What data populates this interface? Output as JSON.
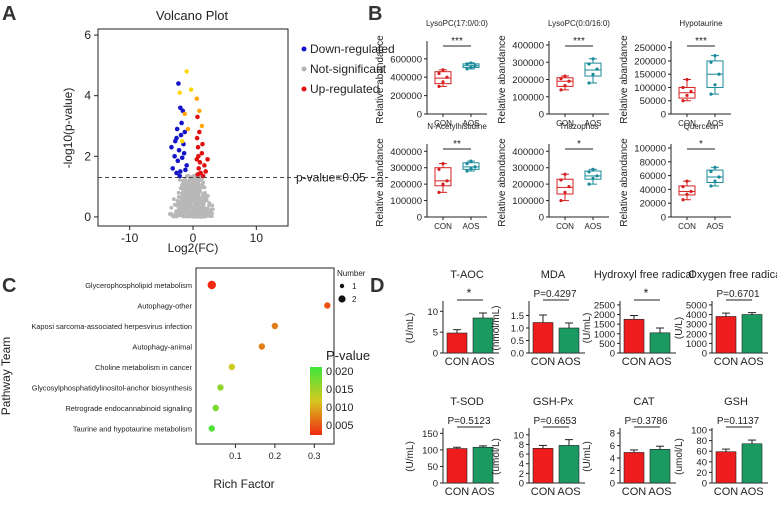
{
  "panels": {
    "A": "A",
    "B": "B",
    "C": "C",
    "D": "D"
  },
  "chart_data": [
    {
      "id": "A",
      "type": "scatter",
      "title": "Volcano Plot",
      "xlabel": "Log2(FC)",
      "ylabel": "-log10(p-value)",
      "xlim": [
        -15,
        15
      ],
      "ylim": [
        -0.3,
        6.2
      ],
      "xticks": [
        "-10",
        "0",
        "10"
      ],
      "yticks": [
        "0",
        "2",
        "4",
        "6"
      ],
      "legend": [
        {
          "label": "Down-regulated",
          "color": "#1414c8"
        },
        {
          "label": "Not-significant",
          "color": "#b4b4b4"
        },
        {
          "label": "Up-regulated",
          "color": "#e01010"
        }
      ],
      "threshold": {
        "value": 1.3,
        "label": "p-value=0.05"
      },
      "down_points": [
        [
          -2.3,
          4.4
        ],
        [
          -2.0,
          3.6
        ],
        [
          -1.6,
          3.5
        ],
        [
          -2.5,
          2.9
        ],
        [
          -1.9,
          2.7
        ],
        [
          -2.8,
          2.5
        ],
        [
          -1.5,
          2.4
        ],
        [
          -2.2,
          2.2
        ],
        [
          -2.9,
          2.0
        ],
        [
          -2.4,
          1.85
        ],
        [
          -1.7,
          1.95
        ],
        [
          -3.2,
          1.6
        ],
        [
          -2.0,
          1.5
        ],
        [
          -1.2,
          1.55
        ],
        [
          -2.6,
          1.45
        ],
        [
          -1.4,
          2.1
        ],
        [
          -3.4,
          2.3
        ],
        [
          -1.0,
          1.7
        ],
        [
          -2.1,
          1.35
        ],
        [
          -1.8,
          3.1
        ],
        [
          -2.6,
          2.6
        ],
        [
          -1.3,
          2.8
        ]
      ],
      "up_points": [
        [
          0.7,
          3.3
        ],
        [
          1.0,
          2.8
        ],
        [
          0.8,
          2.3
        ],
        [
          1.4,
          2.1
        ],
        [
          0.6,
          1.9
        ],
        [
          1.8,
          1.7
        ],
        [
          0.9,
          1.6
        ],
        [
          1.2,
          1.45
        ],
        [
          0.75,
          1.4
        ],
        [
          2.0,
          1.5
        ],
        [
          1.5,
          2.4
        ],
        [
          0.65,
          2.6
        ],
        [
          1.1,
          1.8
        ],
        [
          1.6,
          1.35
        ],
        [
          2.3,
          1.9
        ],
        [
          0.85,
          2.0
        ]
      ],
      "highlight_points": [
        [
          -2.1,
          4.1,
          "#ffd700"
        ],
        [
          -1.0,
          4.8,
          "#ffd700"
        ],
        [
          -0.3,
          4.2,
          "#ffd700"
        ],
        [
          -1.3,
          3.4,
          "#ffa500"
        ],
        [
          0.6,
          3.9,
          "#ffa500"
        ],
        [
          1.0,
          3.5,
          "#ffa500"
        ],
        [
          -0.8,
          2.9,
          "#ffa500"
        ],
        [
          1.4,
          3.0,
          "#ffa500"
        ],
        [
          -1.7,
          2.5,
          "#ffd700"
        ]
      ]
    },
    {
      "id": "B",
      "type": "box",
      "xlabel": "",
      "ylabel": "Relative abandance",
      "categories": [
        "CON",
        "AOS"
      ],
      "group_colors": [
        "#d62020",
        "#1a8a9a"
      ],
      "plots": [
        {
          "title": "LysoPC(17:0/0:0)",
          "sig": "***",
          "ylim": [
            0,
            750000
          ],
          "yticks": [
            "0",
            "200000",
            "400000",
            "600000"
          ],
          "tick_values": [
            0,
            200000,
            400000,
            600000
          ],
          "groups": [
            {
              "min": 300000,
              "q1": 330000,
              "median": 390000,
              "q3": 460000,
              "max": 480000,
              "points": [
                300000,
                350000,
                400000,
                440000,
                480000
              ]
            },
            {
              "min": 490000,
              "q1": 505000,
              "median": 525000,
              "q3": 545000,
              "max": 555000,
              "points": [
                490000,
                510000,
                525000,
                545000,
                555000
              ]
            }
          ]
        },
        {
          "title": "LysoPC(0:0/16:0)",
          "sig": "***",
          "ylim": [
            0,
            400000
          ],
          "yticks": [
            "0",
            "100000",
            "200000",
            "300000",
            "400000"
          ],
          "tick_values": [
            0,
            100000,
            200000,
            300000,
            400000
          ],
          "groups": [
            {
              "min": 140000,
              "q1": 160000,
              "median": 190000,
              "q3": 210000,
              "max": 220000,
              "points": [
                140000,
                165000,
                190000,
                205000,
                220000
              ]
            },
            {
              "min": 180000,
              "q1": 220000,
              "median": 255000,
              "q3": 295000,
              "max": 320000,
              "points": [
                180000,
                230000,
                260000,
                290000,
                320000
              ]
            }
          ]
        },
        {
          "title": "Hypotaurine",
          "sig": "***",
          "ylim": [
            0,
            260000
          ],
          "yticks": [
            "0",
            "50000",
            "100000",
            "150000",
            "200000",
            "250000"
          ],
          "tick_values": [
            0,
            50000,
            100000,
            150000,
            200000,
            250000
          ],
          "groups": [
            {
              "min": 50000,
              "q1": 60000,
              "median": 80000,
              "q3": 100000,
              "max": 130000,
              "points": [
                50000,
                70000,
                85000,
                100000,
                130000
              ]
            },
            {
              "min": 75000,
              "q1": 100000,
              "median": 150000,
              "q3": 200000,
              "max": 220000,
              "points": [
                75000,
                110000,
                150000,
                195000,
                220000
              ]
            }
          ]
        },
        {
          "title": "N-Acetylhistidine",
          "sig": "**",
          "ylim": [
            0,
            420000
          ],
          "yticks": [
            "0",
            "100000",
            "200000",
            "300000",
            "400000"
          ],
          "tick_values": [
            0,
            100000,
            200000,
            300000,
            400000
          ],
          "groups": [
            {
              "min": 150000,
              "q1": 190000,
              "median": 220000,
              "q3": 300000,
              "max": 325000,
              "points": [
                150000,
                200000,
                220000,
                290000,
                325000
              ]
            },
            {
              "min": 280000,
              "q1": 290000,
              "median": 305000,
              "q3": 330000,
              "max": 340000,
              "points": [
                280000,
                295000,
                305000,
                325000,
                340000
              ]
            }
          ]
        },
        {
          "title": "Triazophos",
          "sig": "*",
          "ylim": [
            0,
            420000
          ],
          "yticks": [
            "0",
            "100000",
            "200000",
            "300000",
            "400000"
          ],
          "tick_values": [
            0,
            100000,
            200000,
            300000,
            400000
          ],
          "groups": [
            {
              "min": 100000,
              "q1": 140000,
              "median": 180000,
              "q3": 230000,
              "max": 260000,
              "points": [
                100000,
                150000,
                185000,
                225000,
                260000
              ]
            },
            {
              "min": 200000,
              "q1": 230000,
              "median": 250000,
              "q3": 280000,
              "max": 290000,
              "points": [
                200000,
                235000,
                250000,
                275000,
                290000
              ]
            }
          ]
        },
        {
          "title": "Quercetin",
          "sig": "*",
          "ylim": [
            0,
            100000
          ],
          "yticks": [
            "0",
            "20000",
            "40000",
            "60000",
            "80000",
            "100000"
          ],
          "tick_values": [
            0,
            20000,
            40000,
            60000,
            80000,
            100000
          ],
          "groups": [
            {
              "min": 25000,
              "q1": 32000,
              "median": 37000,
              "q3": 45000,
              "max": 52000,
              "points": [
                25000,
                33000,
                37000,
                44000,
                52000
              ]
            },
            {
              "min": 45000,
              "q1": 50000,
              "median": 58000,
              "q3": 68000,
              "max": 72000,
              "points": [
                45000,
                52000,
                58000,
                66000,
                72000
              ]
            }
          ]
        }
      ]
    },
    {
      "id": "C",
      "type": "scatter",
      "xlabel": "Rich Factor",
      "ylabel": "Pathway Team",
      "xlim": [
        0,
        0.35
      ],
      "xticks": [
        "0.1",
        "0.2",
        "0.3"
      ],
      "xtick_values": [
        0.1,
        0.2,
        0.3
      ],
      "size_legend": {
        "title": "Number",
        "labels": [
          "1",
          "2"
        ]
      },
      "color_legend": {
        "title": "P-value",
        "labels": [
          "0.020",
          "0.015",
          "0.010",
          "0.005"
        ],
        "values": [
          0.02,
          0.015,
          0.01,
          0.005
        ]
      },
      "pathways": [
        {
          "name": "Glycerophospholipid metabolism",
          "rich": 0.04,
          "number": 2,
          "p": 0.004
        },
        {
          "name": "Autophagy-other",
          "rich": 0.333,
          "number": 1,
          "p": 0.007
        },
        {
          "name": "Kaposi sarcoma-associated herpesvirus infection",
          "rich": 0.2,
          "number": 1,
          "p": 0.009
        },
        {
          "name": "Autophagy-animal",
          "rich": 0.167,
          "number": 1,
          "p": 0.009
        },
        {
          "name": "Choline metabolism in cancer",
          "rich": 0.091,
          "number": 1,
          "p": 0.013
        },
        {
          "name": "Glycosylphosphatidylinositol-anchor biosynthesis",
          "rich": 0.062,
          "number": 1,
          "p": 0.016
        },
        {
          "name": "Retrograde endocannabinoid signaling",
          "rich": 0.05,
          "number": 1,
          "p": 0.017
        },
        {
          "name": "Taurine and hypotaurine metabolism",
          "rich": 0.04,
          "number": 1,
          "p": 0.019
        }
      ]
    },
    {
      "id": "D",
      "type": "bar",
      "categories": [
        "CON",
        "AOS"
      ],
      "group_colors": [
        "#ee1c1c",
        "#1a9a60"
      ],
      "plots": [
        {
          "title": "T-AOC",
          "ylabel": "(U/mL)",
          "ylim": [
            0,
            12
          ],
          "yticks": [
            "0",
            "5",
            "10"
          ],
          "tick_values": [
            0,
            5,
            10
          ],
          "values": [
            4.8,
            8.4
          ],
          "errors": [
            0.8,
            1.2
          ],
          "sig": "*"
        },
        {
          "title": "MDA",
          "ylabel": "(nmol/mL)",
          "ylim": [
            0,
            2
          ],
          "yticks": [
            "0.0",
            "0.5",
            "1.0",
            "1.5"
          ],
          "tick_values": [
            0,
            0.5,
            1.0,
            1.5
          ],
          "values": [
            1.22,
            1.0
          ],
          "errors": [
            0.3,
            0.2
          ],
          "sig": "P=0.4297"
        },
        {
          "title": "Hydroxyl free radical",
          "ylabel": "(U/mL)",
          "ylim": [
            0,
            2600
          ],
          "yticks": [
            "0",
            "500",
            "1000",
            "1500",
            "2000",
            "2500"
          ],
          "tick_values": [
            0,
            500,
            1000,
            1500,
            2000,
            2500
          ],
          "values": [
            1750,
            1050
          ],
          "errors": [
            200,
            250
          ],
          "sig": "*"
        },
        {
          "title": "Oxygen free radical",
          "ylabel": "(U/L)",
          "ylim": [
            0,
            5200
          ],
          "yticks": [
            "0",
            "1000",
            "2000",
            "3000",
            "4000",
            "5000"
          ],
          "tick_values": [
            0,
            1000,
            2000,
            3000,
            4000,
            5000
          ],
          "values": [
            3800,
            4000
          ],
          "errors": [
            350,
            200
          ],
          "sig": "P=0.6701"
        },
        {
          "title": "T-SOD",
          "ylabel": "(U/mL)",
          "ylim": [
            0,
            160
          ],
          "yticks": [
            "0",
            "50",
            "100",
            "150"
          ],
          "tick_values": [
            0,
            50,
            100,
            150
          ],
          "values": [
            104,
            108
          ],
          "errors": [
            4,
            4
          ],
          "sig": "P=0.5123"
        },
        {
          "title": "GSH-Px",
          "ylabel": "(umol/L)",
          "ylim": [
            0,
            11
          ],
          "yticks": [
            "0",
            "2",
            "4",
            "6",
            "8",
            "10"
          ],
          "tick_values": [
            0,
            2,
            4,
            6,
            8,
            10
          ],
          "values": [
            7.2,
            7.8
          ],
          "errors": [
            0.6,
            1.2
          ],
          "sig": "P=0.6653"
        },
        {
          "title": "CAT",
          "ylabel": "(U/mL)",
          "ylim": [
            0,
            8.5
          ],
          "yticks": [
            "0",
            "2",
            "4",
            "6",
            "8"
          ],
          "tick_values": [
            0,
            2,
            4,
            6,
            8
          ],
          "values": [
            4.9,
            5.4
          ],
          "errors": [
            0.4,
            0.5
          ],
          "sig": "P=0.3786"
        },
        {
          "title": "GSH",
          "ylabel": "(umol/L)",
          "ylim": [
            0,
            100
          ],
          "yticks": [
            "0",
            "20",
            "40",
            "60",
            "80",
            "100"
          ],
          "tick_values": [
            0,
            20,
            40,
            60,
            80,
            100
          ],
          "values": [
            59,
            74
          ],
          "errors": [
            5,
            7
          ],
          "sig": "P=0.1137"
        }
      ]
    }
  ]
}
